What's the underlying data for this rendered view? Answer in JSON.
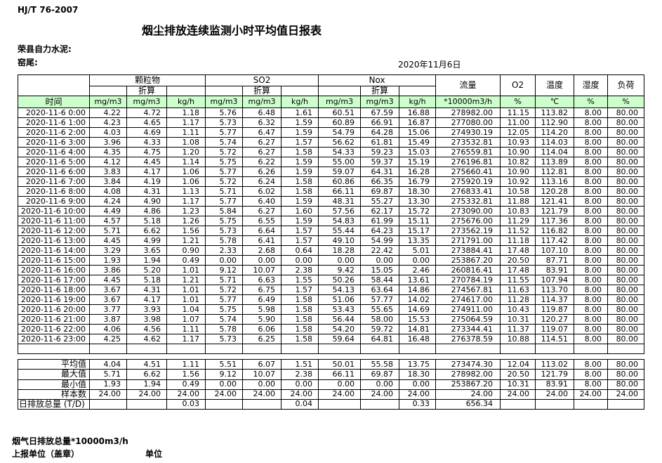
{
  "page": {
    "doc_code": "HJ/T  76-2007",
    "title": "烟尘排放连续监测小时平均值日报表",
    "company": "荣县自力水泥:",
    "site": "窑尾:",
    "date": "2020年11月6日",
    "footer_note": "烟气日排放总量*10000m3/h",
    "footer_report_unit": "上报单位（盖章）",
    "footer_unit": "单位"
  },
  "colors": {
    "header_green": "#ccffcc"
  },
  "table": {
    "time_label": "时间",
    "subheader": "折算",
    "groups": [
      {
        "label": "颗粒物"
      },
      {
        "label": "SO2"
      },
      {
        "label": "Nox"
      }
    ],
    "flow_label": "流量",
    "o2_label": "O2",
    "temp_label": "温度",
    "humidity_label": "湿度",
    "load_label": "负荷",
    "units": [
      "mg/m3",
      "mg/m3",
      "kg/h",
      "mg/m3",
      "mg/m3",
      "kg/h",
      "mg/m3",
      "mg/m3",
      "kg/h",
      "*10000m3/h",
      "%",
      "℃",
      "%",
      "%"
    ],
    "rows": [
      {
        "time": "2020-11-6  0:00",
        "values": [
          "4.22",
          "4.72",
          "1.18",
          "5.76",
          "6.48",
          "1.61",
          "60.51",
          "67.59",
          "16.88",
          "278982.00",
          "11.15",
          "113.82",
          "8.00",
          "80.00"
        ]
      },
      {
        "time": "2020-11-6  1:00",
        "values": [
          "4.23",
          "4.65",
          "1.17",
          "5.73",
          "6.32",
          "1.59",
          "60.89",
          "66.91",
          "16.87",
          "277080.00",
          "11.00",
          "112.90",
          "8.00",
          "80.00"
        ]
      },
      {
        "time": "2020-11-6  2:00",
        "values": [
          "4.03",
          "4.69",
          "1.11",
          "5.77",
          "6.47",
          "1.59",
          "54.79",
          "64.28",
          "15.06",
          "274930.19",
          "12.05",
          "114.20",
          "8.00",
          "80.00"
        ]
      },
      {
        "time": "2020-11-6  3:00",
        "values": [
          "3.96",
          "4.33",
          "1.08",
          "5.74",
          "6.27",
          "1.57",
          "56.62",
          "61.81",
          "15.49",
          "273532.81",
          "10.93",
          "114.03",
          "8.00",
          "80.00"
        ]
      },
      {
        "time": "2020-11-6  4:00",
        "values": [
          "4.35",
          "4.75",
          "1.20",
          "5.72",
          "6.27",
          "1.58",
          "54.33",
          "59.23",
          "15.03",
          "276559.81",
          "10.90",
          "114.04",
          "8.00",
          "80.00"
        ]
      },
      {
        "time": "2020-11-6  5:00",
        "values": [
          "4.12",
          "4.45",
          "1.14",
          "5.75",
          "6.22",
          "1.59",
          "55.00",
          "59.37",
          "15.19",
          "276196.81",
          "10.82",
          "113.89",
          "8.00",
          "80.00"
        ]
      },
      {
        "time": "2020-11-6  6:00",
        "values": [
          "3.83",
          "4.17",
          "1.06",
          "5.77",
          "6.26",
          "1.59",
          "59.07",
          "64.31",
          "16.28",
          "275660.41",
          "10.90",
          "112.81",
          "8.00",
          "80.00"
        ]
      },
      {
        "time": "2020-11-6  7:00",
        "values": [
          "3.84",
          "4.19",
          "1.06",
          "5.72",
          "6.24",
          "1.58",
          "60.86",
          "66.35",
          "16.79",
          "275920.19",
          "10.92",
          "113.16",
          "8.00",
          "80.00"
        ]
      },
      {
        "time": "2020-11-6  8:00",
        "values": [
          "4.08",
          "4.31",
          "1.13",
          "5.71",
          "6.02",
          "1.58",
          "66.11",
          "69.87",
          "18.30",
          "276833.41",
          "10.58",
          "120.28",
          "8.00",
          "80.00"
        ]
      },
      {
        "time": "2020-11-6  9:00",
        "values": [
          "4.24",
          "4.90",
          "1.17",
          "5.77",
          "6.40",
          "1.59",
          "48.31",
          "55.27",
          "13.30",
          "275332.81",
          "11.88",
          "121.41",
          "8.00",
          "80.00"
        ]
      },
      {
        "time": "2020-11-6  10:00",
        "values": [
          "4.49",
          "4.86",
          "1.23",
          "5.84",
          "6.27",
          "1.60",
          "57.56",
          "62.17",
          "15.72",
          "273090.00",
          "10.83",
          "121.79",
          "8.00",
          "80.00"
        ]
      },
      {
        "time": "2020-11-6  11:00",
        "values": [
          "4.57",
          "5.18",
          "1.26",
          "5.75",
          "6.55",
          "1.59",
          "54.83",
          "61.99",
          "15.11",
          "275676.00",
          "11.29",
          "117.36",
          "8.00",
          "80.00"
        ]
      },
      {
        "time": "2020-11-6  12:00",
        "values": [
          "5.71",
          "6.62",
          "1.56",
          "5.73",
          "6.64",
          "1.57",
          "55.44",
          "64.23",
          "15.17",
          "273562.19",
          "11.52",
          "116.82",
          "8.00",
          "80.00"
        ]
      },
      {
        "time": "2020-11-6  13:00",
        "values": [
          "4.45",
          "4.99",
          "1.21",
          "5.78",
          "6.41",
          "1.57",
          "49.10",
          "54.99",
          "13.35",
          "271791.00",
          "11.18",
          "117.42",
          "8.00",
          "80.00"
        ]
      },
      {
        "time": "2020-11-6  14:00",
        "values": [
          "3.29",
          "3.65",
          "0.90",
          "2.33",
          "2.68",
          "0.64",
          "18.28",
          "22.42",
          "5.01",
          "273884.41",
          "17.48",
          "107.10",
          "8.00",
          "80.00"
        ]
      },
      {
        "time": "2020-11-6  15:00",
        "values": [
          "1.93",
          "1.94",
          "0.49",
          "0.00",
          "0.00",
          "0.00",
          "0.00",
          "0.00",
          "0.00",
          "253867.20",
          "20.50",
          "87.71",
          "8.00",
          "80.00"
        ]
      },
      {
        "time": "2020-11-6  16:00",
        "values": [
          "3.86",
          "5.20",
          "1.01",
          "9.12",
          "10.07",
          "2.38",
          "9.42",
          "15.05",
          "2.46",
          "260816.41",
          "17.48",
          "83.91",
          "8.00",
          "80.00"
        ]
      },
      {
        "time": "2020-11-6  17:00",
        "values": [
          "4.45",
          "5.18",
          "1.21",
          "5.71",
          "6.63",
          "1.55",
          "50.26",
          "58.44",
          "13.61",
          "270784.19",
          "11.55",
          "107.94",
          "8.00",
          "80.00"
        ]
      },
      {
        "time": "2020-11-6  18:00",
        "values": [
          "3.67",
          "4.31",
          "1.01",
          "5.72",
          "6.75",
          "1.57",
          "54.13",
          "63.64",
          "14.86",
          "274567.81",
          "11.63",
          "113.70",
          "8.00",
          "80.00"
        ]
      },
      {
        "time": "2020-11-6  19:00",
        "values": [
          "3.67",
          "4.17",
          "1.01",
          "5.77",
          "6.49",
          "1.58",
          "51.06",
          "57.77",
          "14.02",
          "274617.00",
          "11.28",
          "114.37",
          "8.00",
          "80.00"
        ]
      },
      {
        "time": "2020-11-6  20:00",
        "values": [
          "3.77",
          "3.93",
          "1.04",
          "5.75",
          "5.98",
          "1.58",
          "53.43",
          "55.65",
          "14.69",
          "274911.00",
          "10.43",
          "119.87",
          "8.00",
          "80.00"
        ]
      },
      {
        "time": "2020-11-6  21:00",
        "values": [
          "3.87",
          "3.98",
          "1.07",
          "5.74",
          "5.90",
          "1.58",
          "56.44",
          "58.00",
          "15.53",
          "275064.59",
          "10.31",
          "120.27",
          "8.00",
          "80.00"
        ]
      },
      {
        "time": "2020-11-6  22:00",
        "values": [
          "4.06",
          "4.56",
          "1.11",
          "5.78",
          "6.06",
          "1.58",
          "54.20",
          "59.72",
          "14.81",
          "273344.41",
          "11.37",
          "119.07",
          "8.00",
          "80.00"
        ]
      },
      {
        "time": "2020-11-6  23:00",
        "values": [
          "4.25",
          "4.62",
          "1.17",
          "5.73",
          "6.25",
          "1.58",
          "59.64",
          "64.81",
          "16.48",
          "276378.59",
          "10.88",
          "114.51",
          "8.00",
          "80.00"
        ]
      }
    ],
    "empty_row": true,
    "summary": [
      {
        "label": "平均值",
        "align": "right",
        "values": [
          "4.04",
          "4.51",
          "1.11",
          "5.51",
          "6.07",
          "1.51",
          "50.01",
          "55.58",
          "13.75",
          "273474.30",
          "12.04",
          "113.02",
          "8.00",
          "80.00"
        ]
      },
      {
        "label": "最大值",
        "align": "right",
        "values": [
          "5.71",
          "6.62",
          "1.56",
          "9.12",
          "10.07",
          "2.38",
          "66.11",
          "69.87",
          "18.30",
          "278982.00",
          "20.50",
          "121.79",
          "8.00",
          "80.00"
        ]
      },
      {
        "label": "最小值",
        "align": "right",
        "values": [
          "1.93",
          "1.94",
          "0.49",
          "0.00",
          "0.00",
          "0.00",
          "0.00",
          "0.00",
          "0.00",
          "253867.20",
          "10.31",
          "83.91",
          "8.00",
          "80.00"
        ]
      },
      {
        "label": "样本数",
        "align": "right",
        "values": [
          "24.00",
          "24.00",
          "24.00",
          "24.00",
          "24.00",
          "24.00",
          "24.00",
          "24.00",
          "24.00",
          "24.00",
          "24.00",
          "24.00",
          "24.00",
          "24.00"
        ]
      },
      {
        "label": "日排放总量 (T/D)",
        "align": "left",
        "values": [
          "",
          "",
          "0.03",
          "",
          "",
          "0.04",
          "",
          "",
          "0.33",
          "656.34",
          "",
          "",
          "",
          ""
        ]
      }
    ]
  }
}
